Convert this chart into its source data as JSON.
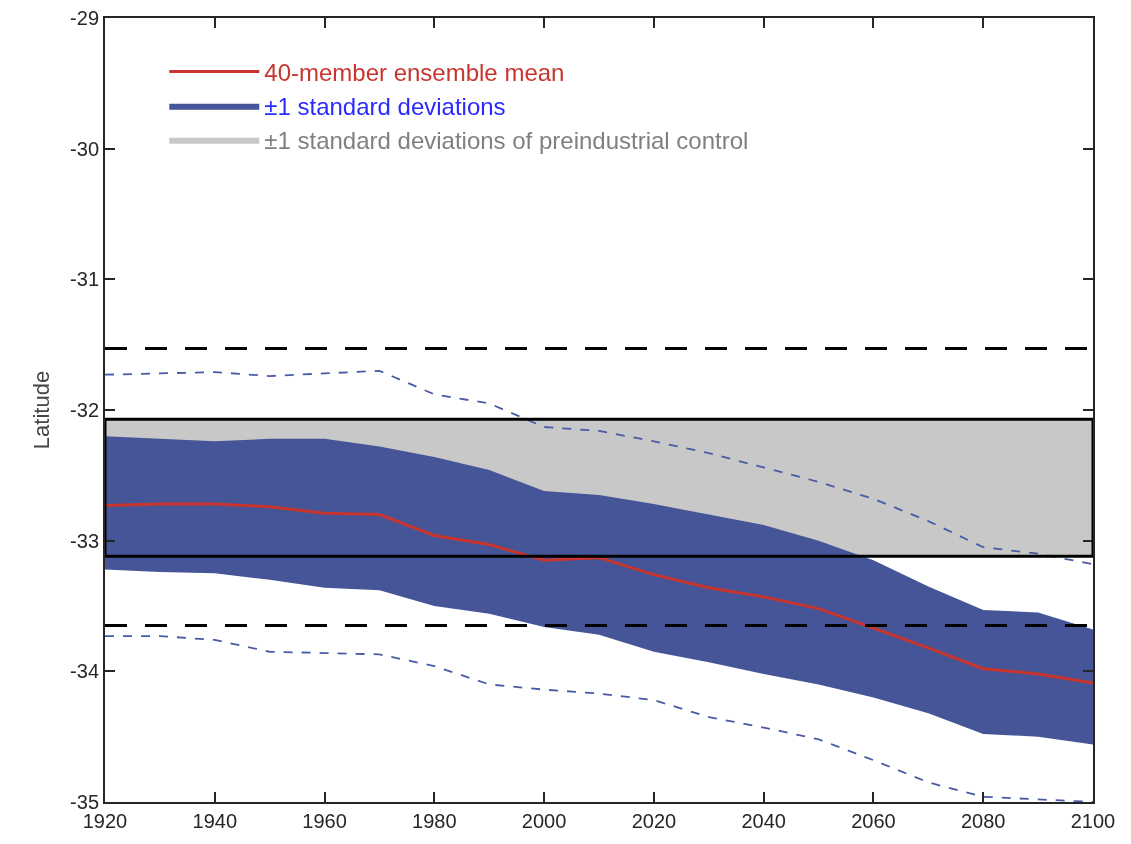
{
  "chart_data": {
    "type": "line",
    "ylabel": "Latitude",
    "annotations": [
      "±1 standard deviations"
    ],
    "x": [
      1920,
      1930,
      1940,
      1950,
      1960,
      1970,
      1980,
      1990,
      2000,
      2010,
      2020,
      2030,
      2040,
      2050,
      2060,
      2070,
      2080,
      2090,
      2100
    ],
    "series": [
      {
        "type": "line",
        "line_style": "dashed",
        "color": "#4a5aa5",
        "values": [
          -31.73,
          -31.72,
          -31.71,
          -31.74,
          -31.72,
          -31.7,
          -31.88,
          -31.95,
          -32.13,
          -32.16,
          -32.24,
          -32.33,
          -32.44,
          -32.55,
          -32.68,
          -32.85,
          -33.05,
          -33.1,
          -33.18
        ]
      },
      {
        "type": "line",
        "line_style": "dashed",
        "color": "#4a5aa5",
        "values": [
          -33.73,
          -33.73,
          -33.76,
          -33.85,
          -33.86,
          -33.87,
          -33.96,
          -34.1,
          -34.14,
          -34.17,
          -34.22,
          -34.35,
          -34.43,
          -34.52,
          -34.68,
          -34.85,
          -34.96,
          -34.98,
          -35.0
        ]
      },
      {
        "name": "40-member ensemble mean",
        "type": "line",
        "line_style": "solid",
        "color": "#c8352e",
        "values": [
          -32.73,
          -32.72,
          -32.72,
          -32.74,
          -32.79,
          -32.8,
          -32.96,
          -33.03,
          -33.15,
          -33.13,
          -33.26,
          -33.36,
          -33.43,
          -33.52,
          -33.67,
          -33.82,
          -33.98,
          -34.02,
          -34.09
        ],
        "upper": [
          -32.2,
          -32.22,
          -32.24,
          -32.22,
          -32.22,
          -32.28,
          -32.36,
          -32.46,
          -32.62,
          -32.65,
          -32.72,
          -32.8,
          -32.88,
          -33.0,
          -33.15,
          -33.35,
          -33.53,
          -33.55,
          -33.68
        ],
        "lower": [
          -33.22,
          -33.24,
          -33.25,
          -33.3,
          -33.36,
          -33.38,
          -33.5,
          -33.56,
          -33.66,
          -33.72,
          -33.85,
          -33.93,
          -34.02,
          -34.1,
          -34.2,
          -34.32,
          -34.48,
          -34.5,
          -34.56
        ]
      }
    ],
    "bands": [
      {
        "axis": "y",
        "from": -33.12,
        "to": -32.07,
        "label": "±1 standard deviations of preindustrial control",
        "color": "#c8c8c8"
      }
    ],
    "ref_lines": [
      {
        "axis": "y",
        "value": -31.53,
        "line_style": "dashed",
        "color": "#000000"
      },
      {
        "axis": "y",
        "value": -33.65,
        "line_style": "dashed",
        "color": "#000000"
      }
    ],
    "xlim": [
      1920,
      2100
    ],
    "xticks": [
      1920,
      1940,
      1960,
      1980,
      2000,
      2020,
      2040,
      2060,
      2080,
      2100
    ],
    "ylim": [
      -35,
      -29
    ],
    "yticks": [
      -35,
      -34,
      -33,
      -32,
      -31,
      -30,
      -29
    ],
    "grid": false,
    "legend": "top left",
    "marker": "none"
  }
}
